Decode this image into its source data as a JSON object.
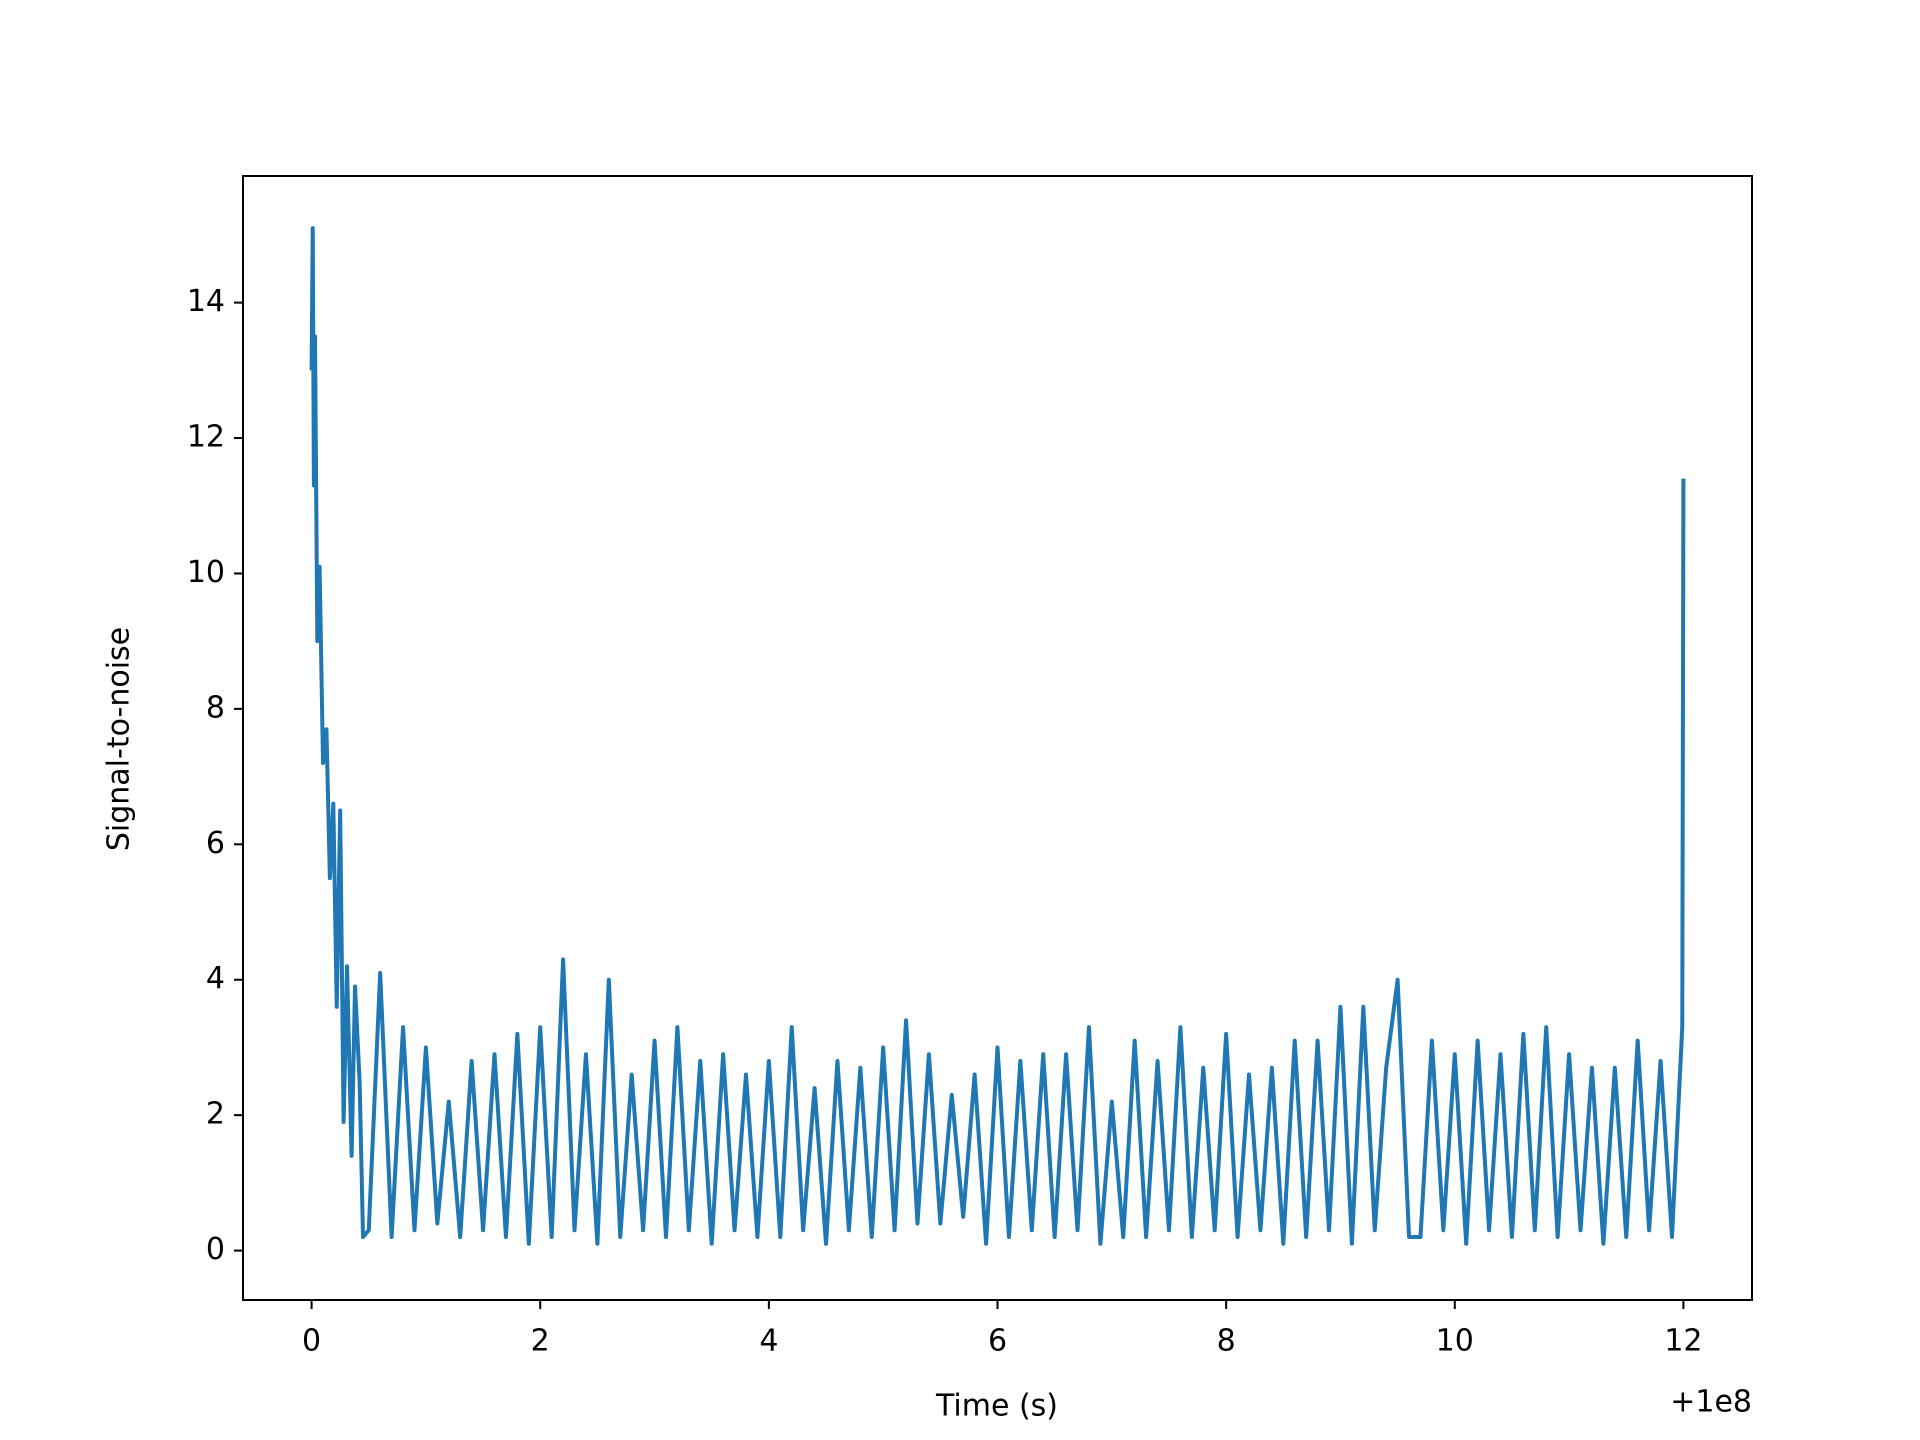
{
  "chart_data": {
    "type": "line",
    "xlabel": "Time (s)",
    "ylabel": "Signal-to-noise",
    "x_offset": "+1e8",
    "color": "#1f77b4",
    "xlim": [
      -0.6,
      12.6
    ],
    "ylim": [
      -0.73,
      15.87
    ],
    "xticks": [
      0,
      2,
      4,
      6,
      8,
      10,
      12
    ],
    "yticks": [
      0,
      2,
      4,
      6,
      8,
      10,
      12,
      14
    ],
    "grid": false,
    "x": [
      0,
      0.01,
      0.02,
      0.03,
      0.05,
      0.07,
      0.1,
      0.13,
      0.16,
      0.19,
      0.22,
      0.25,
      0.28,
      0.31,
      0.35,
      0.38,
      0.42,
      0.45,
      0.5,
      0.6,
      0.7,
      0.8,
      0.9,
      1.0,
      1.1,
      1.2,
      1.3,
      1.4,
      1.5,
      1.6,
      1.7,
      1.8,
      1.9,
      2.0,
      2.1,
      2.2,
      2.3,
      2.4,
      2.5,
      2.6,
      2.7,
      2.8,
      2.9,
      3.0,
      3.1,
      3.2,
      3.3,
      3.4,
      3.5,
      3.6,
      3.7,
      3.8,
      3.9,
      4.0,
      4.1,
      4.2,
      4.3,
      4.4,
      4.5,
      4.6,
      4.7,
      4.8,
      4.9,
      5.0,
      5.1,
      5.2,
      5.3,
      5.4,
      5.5,
      5.6,
      5.7,
      5.8,
      5.9,
      6.0,
      6.1,
      6.2,
      6.3,
      6.4,
      6.5,
      6.6,
      6.7,
      6.8,
      6.9,
      7.0,
      7.1,
      7.2,
      7.3,
      7.4,
      7.5,
      7.6,
      7.7,
      7.8,
      7.9,
      8.0,
      8.1,
      8.2,
      8.3,
      8.4,
      8.5,
      8.6,
      8.7,
      8.8,
      8.9,
      9.0,
      9.1,
      9.2,
      9.3,
      9.4,
      9.5,
      9.6,
      9.7,
      9.8,
      9.9,
      10.0,
      10.1,
      10.2,
      10.3,
      10.4,
      10.5,
      10.6,
      10.7,
      10.8,
      10.9,
      11.0,
      11.1,
      11.2,
      11.3,
      11.4,
      11.5,
      11.6,
      11.7,
      11.8,
      11.9,
      11.99,
      12.0
    ],
    "values": [
      13,
      15.1,
      11.3,
      13.5,
      9,
      10.1,
      7.2,
      7.7,
      5.5,
      6.6,
      3.6,
      6.5,
      1.9,
      4.2,
      1.4,
      3.9,
      2.5,
      0.2,
      0.3,
      4.1,
      0.2,
      3.3,
      0.3,
      3.0,
      0.4,
      2.2,
      0.2,
      2.8,
      0.3,
      2.9,
      0.2,
      3.2,
      0.1,
      3.3,
      0.2,
      4.3,
      0.3,
      2.9,
      0.1,
      4.0,
      0.2,
      2.6,
      0.3,
      3.1,
      0.2,
      3.3,
      0.3,
      2.8,
      0.1,
      2.9,
      0.3,
      2.6,
      0.2,
      2.8,
      0.2,
      3.3,
      0.3,
      2.4,
      0.1,
      2.8,
      0.3,
      2.7,
      0.2,
      3.0,
      0.3,
      3.4,
      0.4,
      2.9,
      0.4,
      2.3,
      0.5,
      2.6,
      0.1,
      3.0,
      0.2,
      2.8,
      0.3,
      2.9,
      0.2,
      2.9,
      0.3,
      3.3,
      0.1,
      2.2,
      0.2,
      3.1,
      0.2,
      2.8,
      0.3,
      3.3,
      0.2,
      2.7,
      0.3,
      3.2,
      0.2,
      2.6,
      0.3,
      2.7,
      0.1,
      3.1,
      0.2,
      3.1,
      0.3,
      3.6,
      0.1,
      3.6,
      0.3,
      2.7,
      4.0,
      0.2,
      0.2,
      3.1,
      0.3,
      2.9,
      0.1,
      3.1,
      0.3,
      2.9,
      0.2,
      3.2,
      0.3,
      3.3,
      0.2,
      2.9,
      0.3,
      2.7,
      0.1,
      2.7,
      0.2,
      3.1,
      0.3,
      2.8,
      0.2,
      3.3,
      11.4
    ]
  }
}
